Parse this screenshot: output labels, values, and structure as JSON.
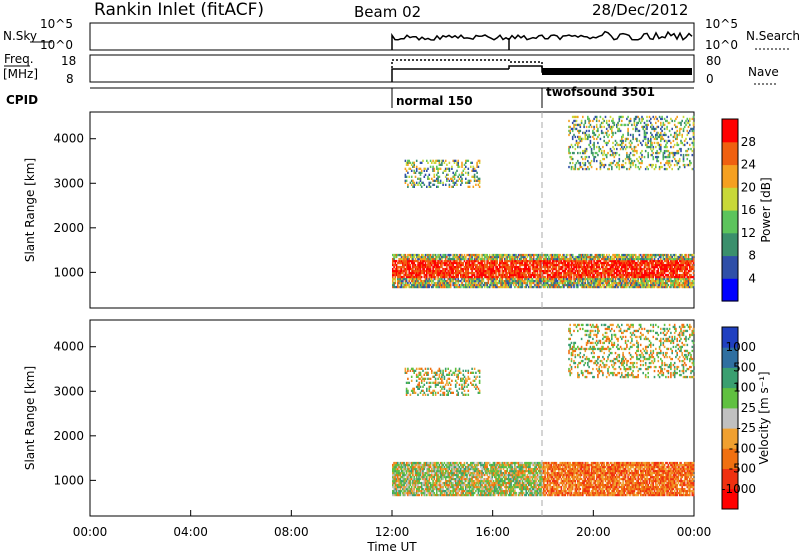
{
  "header": {
    "title": "Rankin Inlet (fitACF)",
    "beam": "Beam 02",
    "date": "28/Dec/2012"
  },
  "panel_labels": {
    "nsky": "N.Sky",
    "nsky_ticks": [
      "10^5",
      "10^0"
    ],
    "nsearch": "N.Search",
    "nsearch_ticks": [
      "10^5",
      "10^0"
    ],
    "freq": "Freq.",
    "freq_unit": "[MHz]",
    "freq_ticks": [
      "18",
      "8"
    ],
    "nave": "Nave",
    "nave_ticks": [
      "80",
      "0"
    ],
    "cpid": "CPID",
    "cpid_segments": [
      "normal 150",
      "twofsound 3501"
    ]
  },
  "colors": {
    "power_scale": [
      "#0000ff",
      "#2f4fa8",
      "#3a8f6c",
      "#5cc45c",
      "#c8d838",
      "#f5a020",
      "#f06010",
      "#ff0000"
    ],
    "velocity_scale": [
      "#2040c0",
      "#2f6fa0",
      "#3a9f70",
      "#60c040",
      "#c0c0c0",
      "#f0a030",
      "#f07010",
      "#f03010",
      "#ff0000"
    ]
  },
  "chart_data": [
    {
      "type": "heatmap",
      "name": "power",
      "ylabel": "Slant Range [km]",
      "xlabel": "",
      "xlim_hours": [
        0,
        24
      ],
      "ylim": [
        200,
        4600
      ],
      "yticks": [
        1000,
        2000,
        3000,
        4000
      ],
      "colorbar": {
        "label": "Power [dB]",
        "ticks": [
          4,
          8,
          12,
          16,
          20,
          24,
          28
        ]
      },
      "echo_regions": [
        {
          "t0": 12.0,
          "t1": 24.0,
          "r0": 650,
          "r1": 1400,
          "dominant": "high (24-30 dB)"
        },
        {
          "t0": 12.5,
          "t1": 15.5,
          "r0": 2900,
          "r1": 3500,
          "dominant": "low-mid"
        },
        {
          "t0": 19.0,
          "t1": 24.0,
          "r0": 3300,
          "r1": 4500,
          "dominant": "mid"
        }
      ]
    },
    {
      "type": "heatmap",
      "name": "velocity",
      "ylabel": "Slant Range [km]",
      "xlabel": "Time UT",
      "xlim_hours": [
        0,
        24
      ],
      "xticks": [
        "00:00",
        "04:00",
        "08:00",
        "12:00",
        "16:00",
        "20:00",
        "00:00"
      ],
      "ylim": [
        200,
        4600
      ],
      "yticks": [
        1000,
        2000,
        3000,
        4000
      ],
      "colorbar": {
        "label": "Velocity [m s⁻¹]",
        "ticks": [
          1000,
          500,
          100,
          25,
          -25,
          -100,
          -500,
          -1000
        ]
      },
      "echo_regions": [
        {
          "t0": 12.0,
          "t1": 24.0,
          "r0": 650,
          "r1": 1400,
          "dominant": "mixed (-500 to 500)"
        },
        {
          "t0": 12.5,
          "t1": 15.5,
          "r0": 2900,
          "r1": 3500,
          "dominant": "negative"
        },
        {
          "t0": 19.0,
          "t1": 24.0,
          "r0": 3300,
          "r1": 4500,
          "dominant": "mixed"
        }
      ]
    }
  ]
}
